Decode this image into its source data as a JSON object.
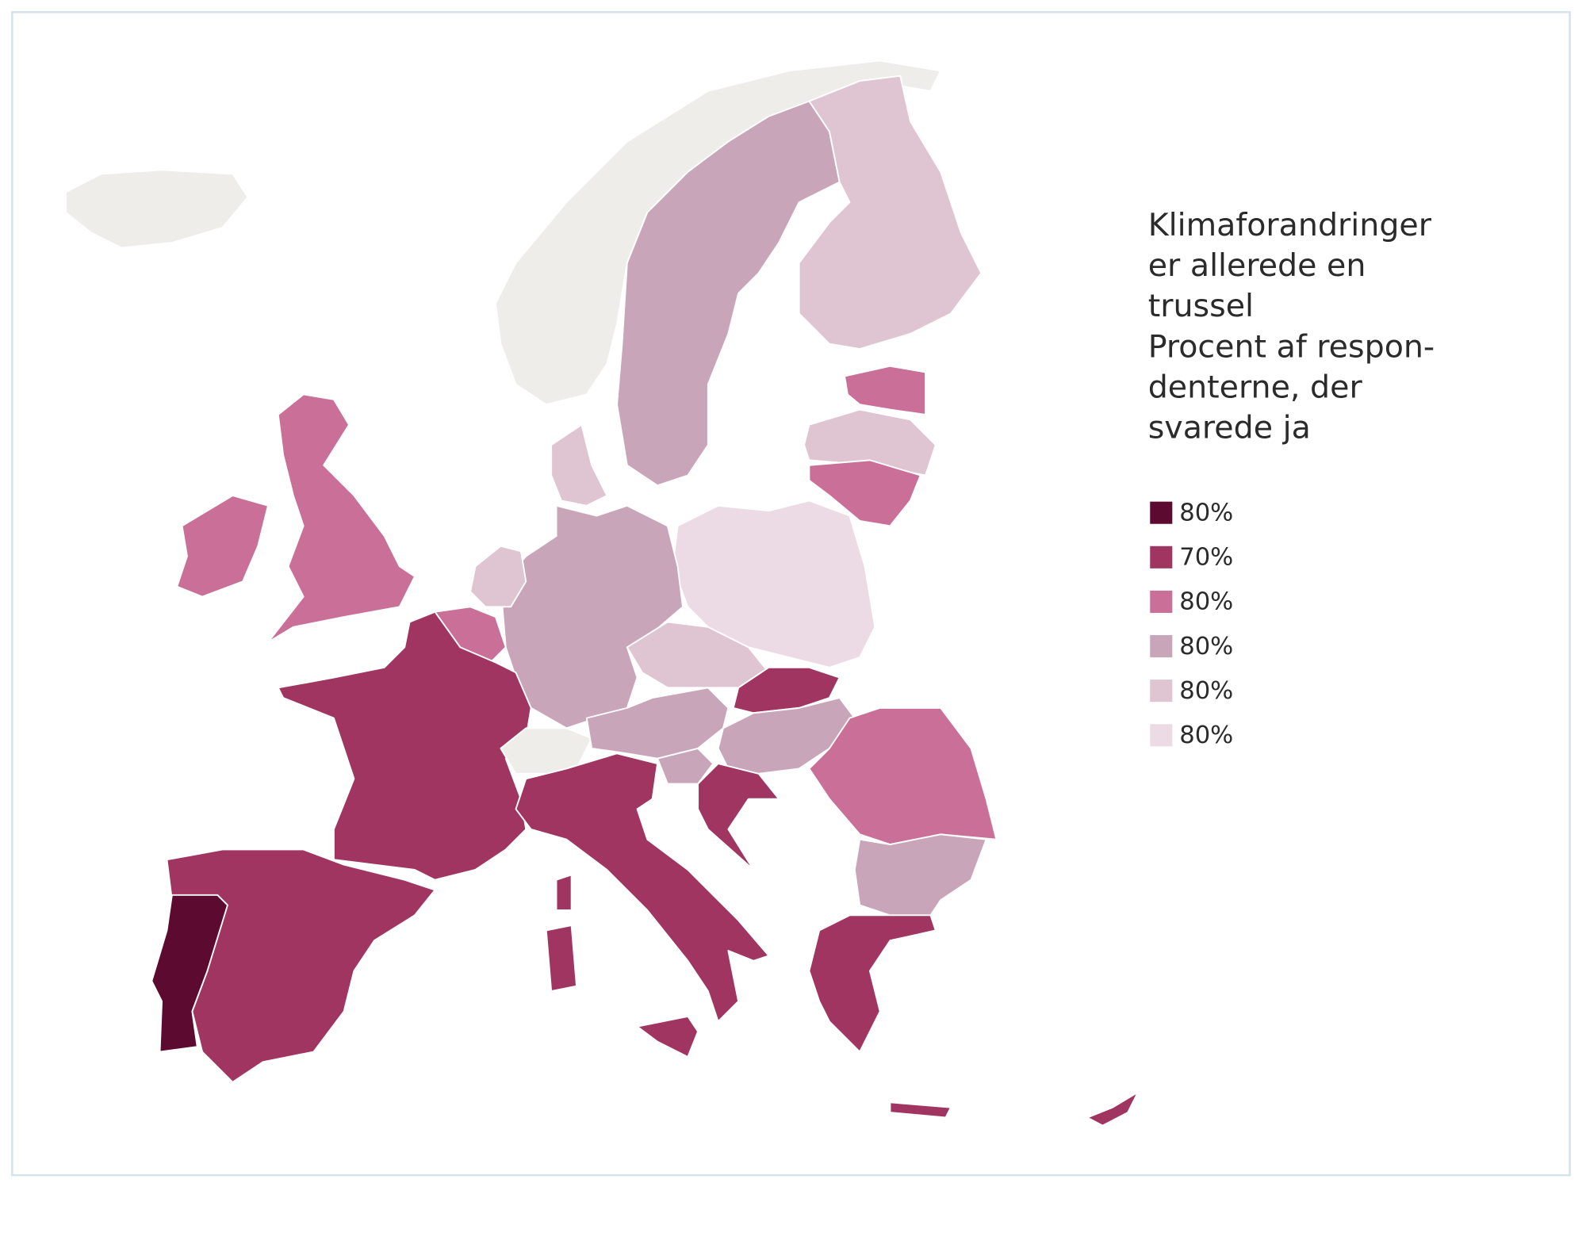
{
  "map": {
    "title_lines": [
      "Klimaforandringer",
      "er allerede en",
      "trussel"
    ],
    "subtitle_lines": [
      "Procent af respon-",
      "denterne, der",
      "svarede ja"
    ],
    "legend": [
      {
        "label": "80%",
        "color": "#5c0a30"
      },
      {
        "label": "70%",
        "color": "#a03562"
      },
      {
        "label": "80%",
        "color": "#c96f98"
      },
      {
        "label": "80%",
        "color": "#c9a5ba"
      },
      {
        "label": "80%",
        "color": "#dfc4d2"
      },
      {
        "label": "80%",
        "color": "#ecdbe4"
      }
    ],
    "no_data_color": "#efedea"
  }
}
